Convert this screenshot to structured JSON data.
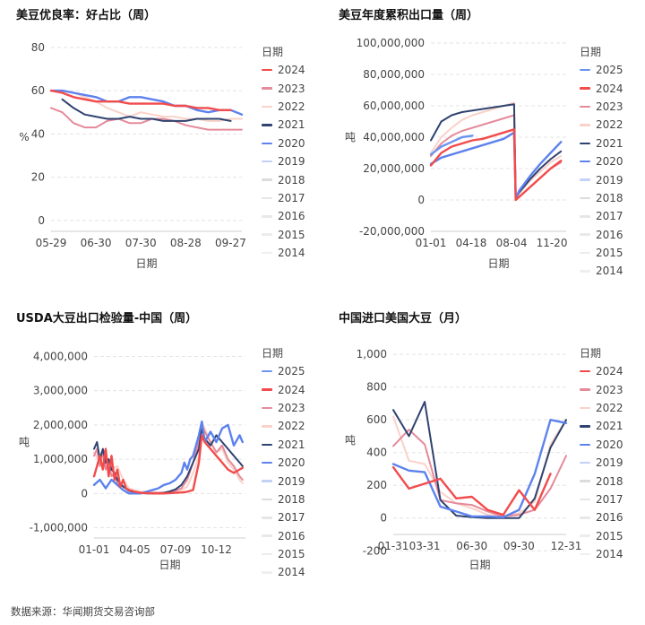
{
  "colors": {
    "2025": "#6b94f0",
    "2024": "#f24b4b",
    "2023": "#e58a9a",
    "2022": "#f9d2c9",
    "2021": "#2f4370",
    "2020": "#5d82ee",
    "2019": "#c4d1f6",
    "2018": "#dcdcdc",
    "2017": "#e6e6e6",
    "2016": "#e8e8e8",
    "2015": "#ececec",
    "2014": "#efefef",
    "2013": "#f2f2f2"
  },
  "source_text": "数据来源：华闻期货交易咨询部",
  "chart_data": [
    {
      "id": "c1",
      "type": "line",
      "title": "美豆优良率：好占比（周）",
      "xlabel": "日期",
      "ylabel": "%",
      "legend_title": "日期",
      "legend": [
        "2024",
        "2023",
        "2022",
        "2021",
        "2020",
        "2019",
        "2018",
        "2017",
        "2016",
        "2015",
        "2014"
      ],
      "ylim": [
        -5,
        82
      ],
      "y_ticks": [
        "0",
        "20",
        "40",
        "60",
        "80"
      ],
      "y_tick_values": [
        0,
        20,
        40,
        60,
        80
      ],
      "xlim": [
        0,
        17
      ],
      "x_ticks": [
        "05-29",
        "06-30",
        "07-30",
        "08-28",
        "09-27"
      ],
      "x_tick_positions": [
        0,
        4,
        8,
        12,
        16
      ],
      "series": [
        {
          "name": "2022",
          "x": [
            0,
            1,
            2,
            3,
            4,
            5,
            6,
            7,
            8,
            9,
            10,
            11,
            12,
            13,
            14,
            15,
            16,
            17
          ],
          "values": [
            60,
            60,
            59,
            57,
            55,
            52,
            50,
            48,
            50,
            49,
            48,
            48,
            47,
            47,
            46,
            46,
            47,
            47
          ]
        },
        {
          "name": "2023",
          "x": [
            0,
            1,
            2,
            3,
            4,
            5,
            6,
            7,
            8,
            9,
            10,
            11,
            12,
            13,
            14,
            15,
            16,
            17
          ],
          "values": [
            52,
            50,
            45,
            43,
            43,
            46,
            47,
            45,
            45,
            47,
            47,
            46,
            44,
            43,
            42,
            42,
            42,
            42
          ]
        },
        {
          "name": "2021",
          "x": [
            1,
            2,
            3,
            4,
            5,
            6,
            7,
            8,
            9,
            10,
            11,
            12,
            13,
            14,
            15,
            16
          ],
          "values": [
            56,
            52,
            49,
            48,
            47,
            47,
            48,
            47,
            47,
            46,
            46,
            46,
            47,
            47,
            47,
            46
          ]
        },
        {
          "name": "2020",
          "x": [
            0,
            1,
            2,
            3,
            4,
            5,
            6,
            7,
            8,
            9,
            10,
            11,
            12,
            13,
            14,
            15,
            16,
            17
          ],
          "values": [
            60,
            60,
            59,
            58,
            57,
            55,
            55,
            57,
            57,
            56,
            55,
            53,
            53,
            51,
            50,
            51,
            51,
            49
          ]
        },
        {
          "name": "2024",
          "x": [
            0,
            1,
            2,
            3,
            4,
            5,
            6,
            7,
            8,
            9,
            10,
            11,
            12,
            13,
            14,
            15,
            16
          ],
          "values": [
            60,
            59,
            57,
            56,
            55,
            55,
            55,
            54,
            54,
            54,
            54,
            53,
            53,
            52,
            52,
            51,
            51
          ]
        }
      ]
    },
    {
      "id": "c2",
      "type": "line",
      "title": "美豆年度累积出口量（周）",
      "xlabel": "日期",
      "ylabel": "吨",
      "legend_title": "日期",
      "legend": [
        "2025",
        "2024",
        "2023",
        "2022",
        "2021",
        "2020",
        "2019",
        "2018",
        "2017",
        "2016",
        "2015",
        "2014"
      ],
      "ylim": [
        -20000000,
        100000000
      ],
      "y_ticks": [
        "100,000,000",
        "80,000,000",
        "60,000,000",
        "40,000,000",
        "20,000,000",
        "0",
        "-20,000,000"
      ],
      "y_tick_values": [
        100000000,
        80000000,
        60000000,
        40000000,
        20000000,
        0,
        -20000000
      ],
      "xlim": [
        0,
        52
      ],
      "x_ticks": [
        "01-01",
        "04-18",
        "08-04",
        "11-20"
      ],
      "x_tick_positions": [
        0,
        15.5,
        31,
        46.5
      ],
      "series": [
        {
          "name": "2022",
          "x": [
            0,
            4,
            8,
            12,
            16,
            20,
            24,
            28,
            32,
            32.6,
            34,
            38,
            42,
            46,
            50
          ],
          "values": [
            30000000,
            40000000,
            46000000,
            51000000,
            54000000,
            56000000,
            58000000,
            60000000,
            62000000,
            1000000,
            4000000,
            12000000,
            18000000,
            24000000,
            28000000
          ]
        },
        {
          "name": "2023",
          "x": [
            0,
            4,
            8,
            12,
            16,
            20,
            24,
            28,
            32,
            32.6,
            34,
            38,
            42,
            46,
            50
          ],
          "values": [
            28000000,
            36000000,
            41000000,
            44000000,
            46000000,
            48000000,
            50000000,
            52000000,
            54000000,
            0,
            2000000,
            8000000,
            14000000,
            20000000,
            24000000
          ]
        },
        {
          "name": "2021",
          "x": [
            0,
            4,
            8,
            12,
            16,
            20,
            24,
            28,
            32,
            32.6,
            34,
            38,
            42,
            46,
            50
          ],
          "values": [
            38000000,
            50000000,
            54000000,
            56000000,
            57000000,
            58000000,
            59000000,
            60000000,
            61000000,
            1000000,
            5000000,
            13000000,
            20000000,
            26000000,
            31000000
          ]
        },
        {
          "name": "2024",
          "x": [
            0,
            4,
            8,
            12,
            16,
            20,
            24,
            28,
            32,
            32.6,
            34,
            38,
            42,
            46,
            50
          ],
          "values": [
            22000000,
            30000000,
            34000000,
            36000000,
            38000000,
            39000000,
            41000000,
            43000000,
            45000000,
            0,
            2000000,
            8000000,
            14000000,
            20000000,
            25000000
          ]
        },
        {
          "name": "2020",
          "x": [
            0,
            4,
            8,
            12,
            16,
            20,
            24,
            28,
            32,
            32.6,
            34,
            38,
            42,
            46,
            50
          ],
          "values": [
            23000000,
            27000000,
            29000000,
            31000000,
            33000000,
            35000000,
            37000000,
            39000000,
            43000000,
            1000000,
            6000000,
            15000000,
            23000000,
            30000000,
            37000000
          ]
        },
        {
          "name": "2025",
          "x": [
            0,
            4,
            8,
            12,
            16
          ],
          "values": [
            29000000,
            34000000,
            37000000,
            40000000,
            41000000
          ]
        }
      ]
    },
    {
      "id": "c3",
      "type": "line",
      "title": "USDA大豆出口检验量-中国（周）",
      "xlabel": "日期",
      "ylabel": "吨",
      "legend_title": "日期",
      "legend": [
        "2025",
        "2024",
        "2023",
        "2022",
        "2021",
        "2020",
        "2019",
        "2018",
        "2017",
        "2016",
        "2015",
        "2014"
      ],
      "ylim": [
        -1300000,
        4300000
      ],
      "y_ticks": [
        "4,000,000",
        "3,000,000",
        "2,000,000",
        "1,000,000",
        "0",
        "-1,000,000"
      ],
      "y_tick_values": [
        4000000,
        3000000,
        2000000,
        1000000,
        0,
        -1000000
      ],
      "xlim": [
        0,
        52
      ],
      "x_ticks": [
        "01-01",
        "04-05",
        "07-09",
        "10-12"
      ],
      "x_tick_positions": [
        0,
        14,
        28,
        42
      ],
      "series": [
        {
          "name": "2022",
          "x": [
            0,
            2,
            4,
            6,
            8,
            10,
            12,
            14,
            16,
            18,
            20,
            22,
            24,
            26,
            28,
            30,
            32,
            34,
            36,
            37,
            38,
            40,
            42,
            44,
            46,
            48,
            50,
            51
          ],
          "values": [
            1200000,
            900000,
            1100000,
            700000,
            800000,
            400000,
            150000,
            100000,
            50000,
            50000,
            50000,
            30000,
            30000,
            30000,
            60000,
            100000,
            200000,
            600000,
            1100000,
            2100000,
            1900000,
            1500000,
            1200000,
            1300000,
            900000,
            700000,
            400000,
            300000
          ]
        },
        {
          "name": "2023",
          "x": [
            0,
            1,
            2,
            3,
            4,
            5,
            6,
            7,
            8,
            10,
            12,
            14,
            16,
            18,
            20,
            22,
            24,
            26,
            28,
            30,
            32,
            34,
            36,
            37,
            38,
            40,
            42,
            44,
            46,
            48,
            50,
            51
          ],
          "values": [
            1100000,
            1300000,
            800000,
            1200000,
            700000,
            900000,
            500000,
            600000,
            300000,
            200000,
            100000,
            50000,
            30000,
            20000,
            20000,
            20000,
            30000,
            50000,
            80000,
            150000,
            400000,
            900000,
            1500000,
            2000000,
            1800000,
            1500000,
            1200000,
            1400000,
            1000000,
            800000,
            500000,
            400000
          ]
        },
        {
          "name": "2021",
          "x": [
            0,
            1,
            2,
            3,
            4,
            5,
            6,
            7,
            8,
            10,
            12,
            14,
            16,
            18,
            20,
            22,
            24,
            26,
            28,
            30,
            32,
            34,
            36,
            37,
            38,
            40,
            42,
            44,
            46,
            48,
            50,
            51
          ],
          "values": [
            1300000,
            1500000,
            1000000,
            1300000,
            900000,
            1000000,
            700000,
            600000,
            400000,
            200000,
            80000,
            30000,
            10000,
            0,
            0,
            0,
            20000,
            60000,
            120000,
            250000,
            500000,
            900000,
            1300000,
            1900000,
            1600000,
            1400000,
            1700000,
            1500000,
            1300000,
            1100000,
            900000,
            800000
          ]
        },
        {
          "name": "2020",
          "x": [
            0,
            2,
            4,
            6,
            8,
            10,
            12,
            14,
            16,
            18,
            20,
            22,
            24,
            26,
            28,
            30,
            31,
            32,
            33,
            34,
            35,
            36,
            37,
            38,
            40,
            42,
            44,
            46,
            48,
            50,
            51
          ],
          "values": [
            250000,
            400000,
            150000,
            400000,
            250000,
            100000,
            0,
            0,
            0,
            50000,
            100000,
            150000,
            250000,
            300000,
            400000,
            600000,
            900000,
            700000,
            1000000,
            1100000,
            1400000,
            1700000,
            2100000,
            1500000,
            1800000,
            1500000,
            1900000,
            2000000,
            1400000,
            1700000,
            1500000
          ]
        },
        {
          "name": "2024",
          "x": [
            0,
            1,
            2,
            3,
            4,
            5,
            6,
            7,
            8,
            9,
            10,
            11,
            12,
            14,
            16,
            18,
            20,
            22,
            24,
            26,
            28,
            30,
            32,
            34,
            36,
            37,
            38,
            40,
            42,
            44,
            46,
            48,
            50,
            51
          ],
          "values": [
            500000,
            800000,
            1100000,
            700000,
            1300000,
            500000,
            1100000,
            400000,
            700000,
            200000,
            400000,
            150000,
            100000,
            50000,
            20000,
            10000,
            0,
            0,
            0,
            10000,
            20000,
            30000,
            50000,
            100000,
            900000,
            1700000,
            1500000,
            1300000,
            1100000,
            900000,
            700000,
            600000,
            700000,
            750000
          ]
        }
      ]
    },
    {
      "id": "c4",
      "type": "line",
      "title": "中国进口美国大豆（月）",
      "xlabel": "日期",
      "ylabel": "吨",
      "legend_title": "日期",
      "legend": [
        "2024",
        "2023",
        "2022",
        "2021",
        "2020",
        "2019",
        "2018",
        "2017",
        "2016",
        "2015",
        "2014"
      ],
      "ylim": [
        -100,
        1050
      ],
      "y_ticks": [
        "1,000",
        "800",
        "600",
        "400",
        "200",
        "0",
        "-200"
      ],
      "y_tick_values": [
        1000,
        800,
        600,
        400,
        200,
        0,
        -200
      ],
      "xlim": [
        0,
        11
      ],
      "x_ticks": [
        "01-31",
        "03-31",
        "06-30",
        "09-30",
        "12-31"
      ],
      "x_tick_positions": [
        0,
        2,
        5,
        8,
        11
      ],
      "series": [
        {
          "name": "2022",
          "x": [
            0,
            1,
            2,
            3,
            4,
            5,
            6,
            7,
            8,
            9,
            10,
            11
          ],
          "values": [
            620,
            350,
            330,
            160,
            90,
            60,
            20,
            10,
            30,
            100,
            450,
            600
          ]
        },
        {
          "name": "2023",
          "x": [
            0,
            1,
            2,
            3,
            4,
            5,
            6,
            7,
            8,
            9,
            10,
            11
          ],
          "values": [
            440,
            540,
            450,
            110,
            90,
            80,
            40,
            10,
            20,
            50,
            180,
            380
          ]
        },
        {
          "name": "2021",
          "x": [
            0,
            1,
            2,
            3,
            4,
            5,
            6,
            7,
            8,
            9,
            10,
            11
          ],
          "values": [
            660,
            500,
            710,
            110,
            15,
            5,
            0,
            0,
            0,
            120,
            430,
            600
          ]
        },
        {
          "name": "2020",
          "x": [
            0,
            1,
            2,
            3,
            4,
            5,
            6,
            7,
            8,
            9,
            10,
            11
          ],
          "values": [
            330,
            290,
            280,
            70,
            40,
            10,
            10,
            5,
            50,
            270,
            600,
            580
          ]
        },
        {
          "name": "2024",
          "x": [
            0,
            1,
            2,
            3,
            4,
            5,
            6,
            7,
            8,
            9,
            10
          ],
          "values": [
            310,
            180,
            210,
            240,
            120,
            130,
            50,
            20,
            170,
            50,
            270
          ]
        }
      ]
    }
  ]
}
